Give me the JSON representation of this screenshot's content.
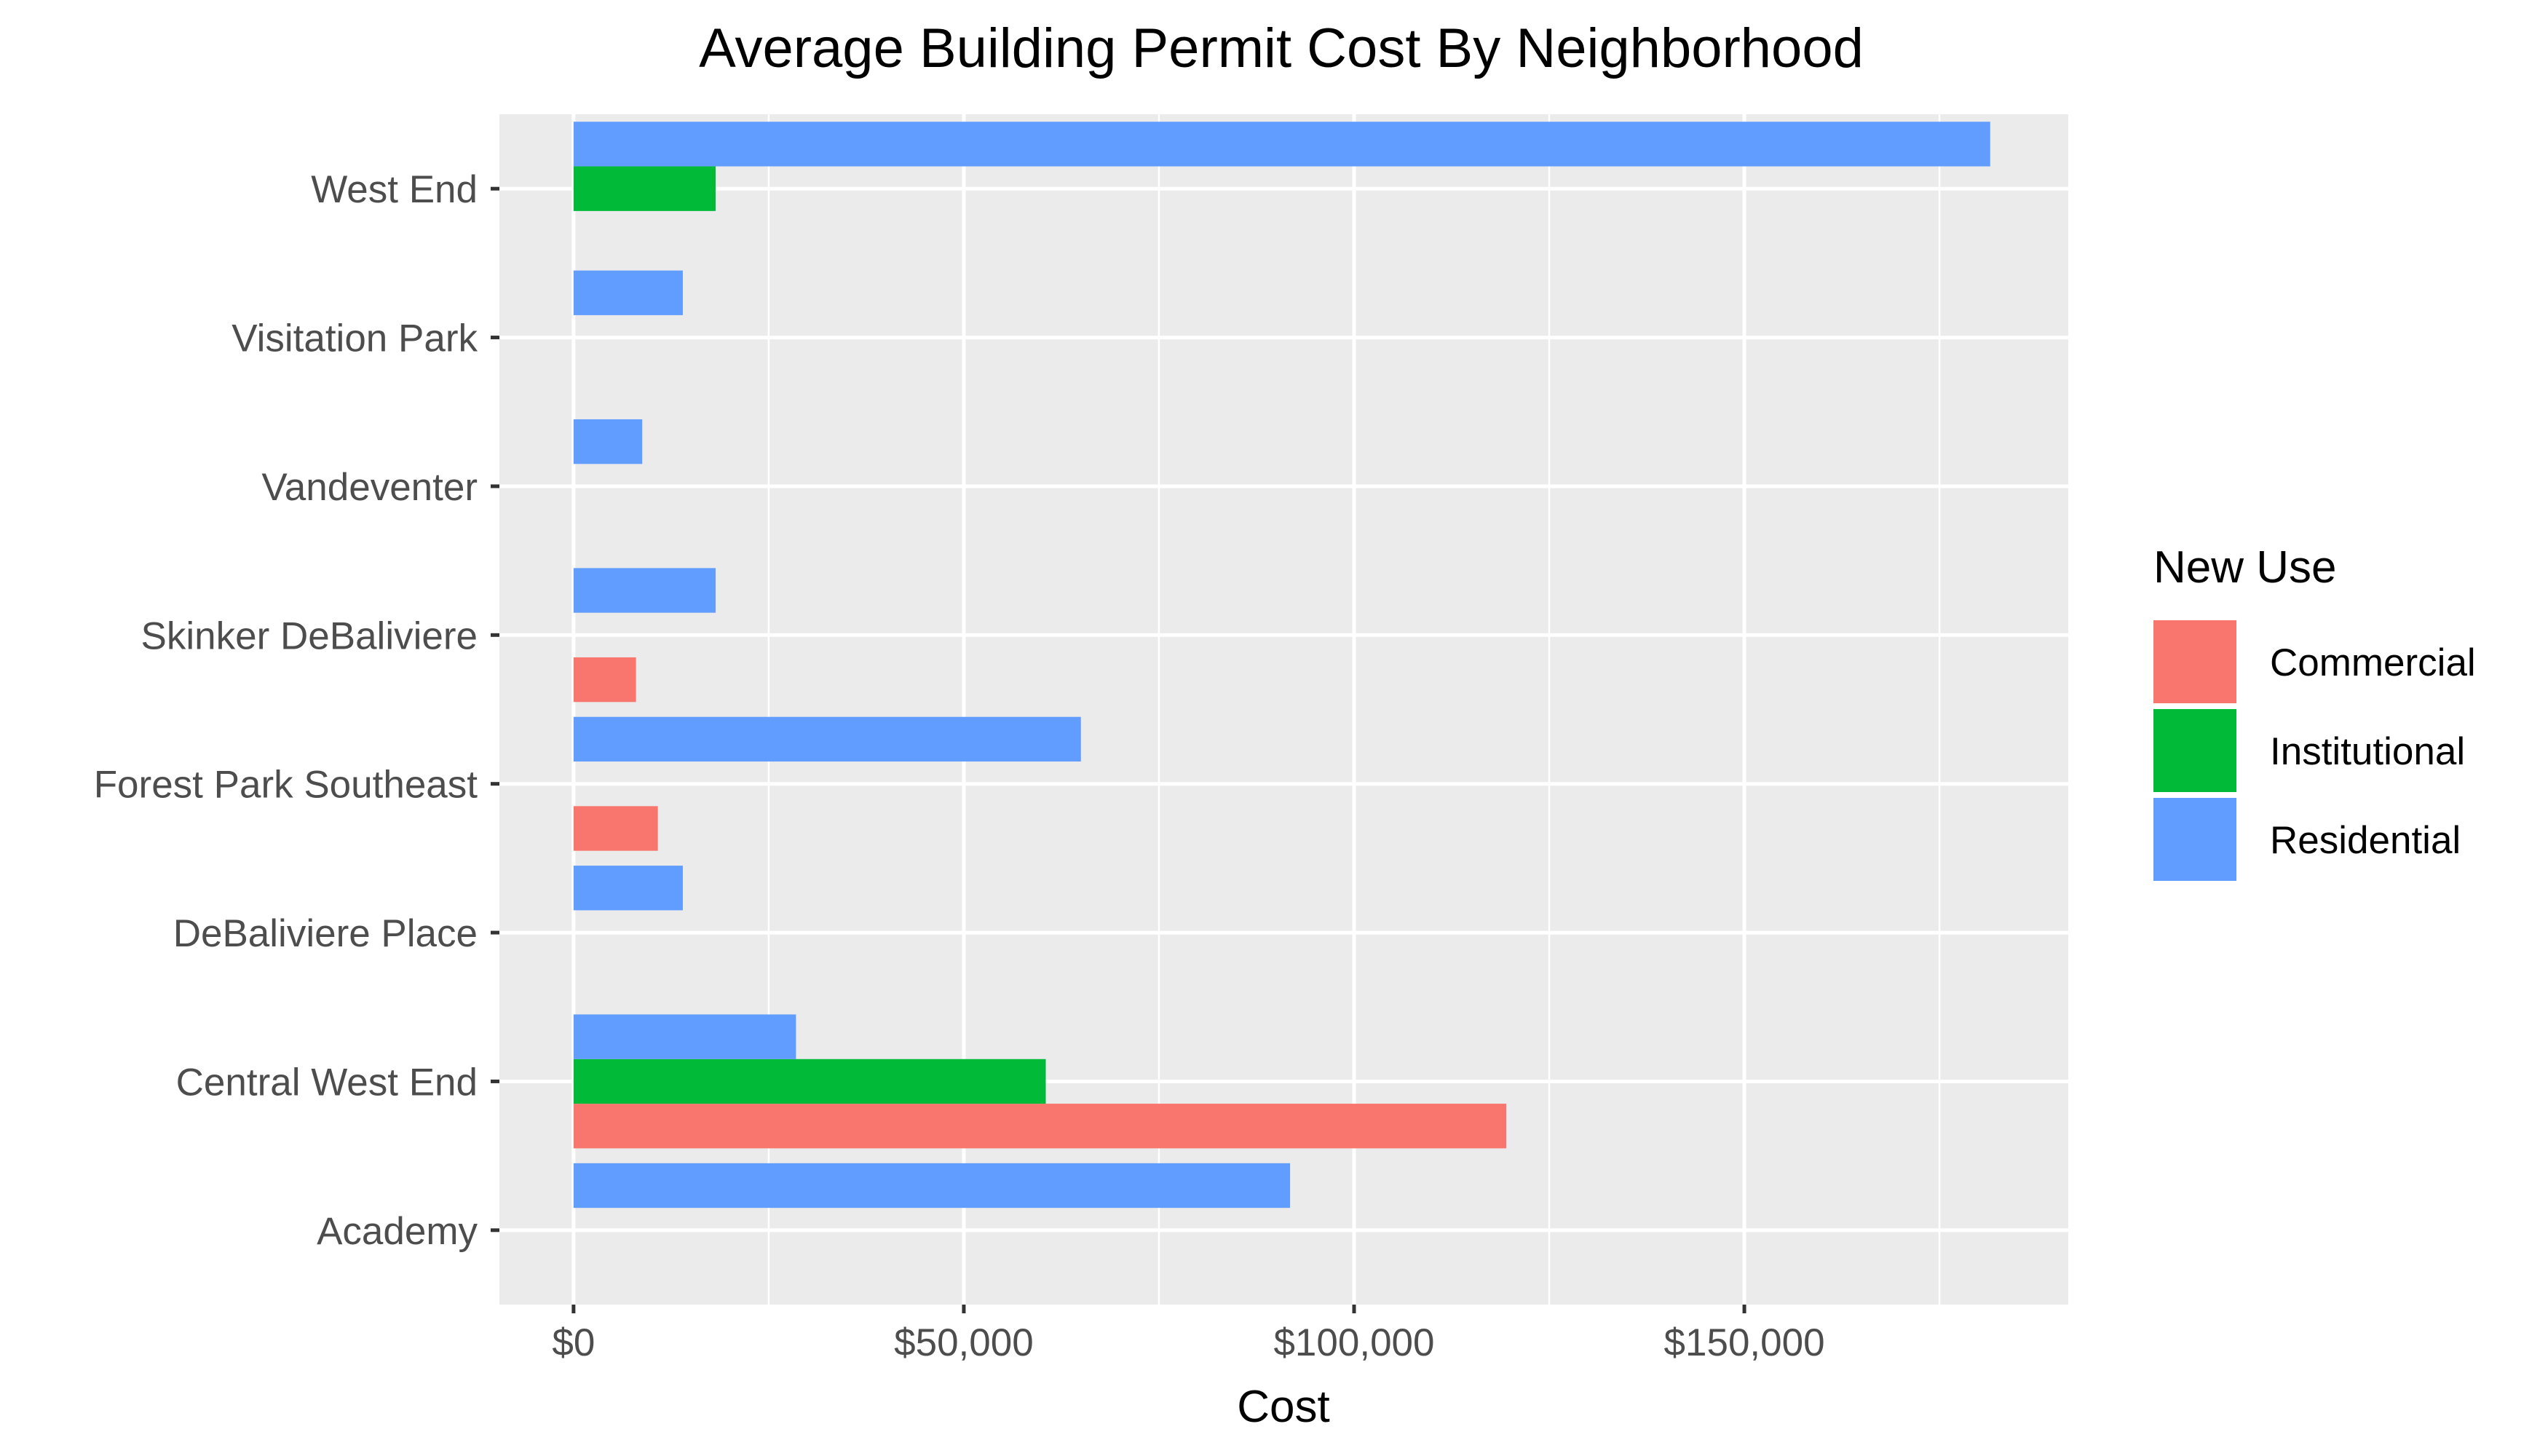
{
  "chart_data": {
    "type": "bar",
    "orientation": "horizontal",
    "title": "Average Building Permit Cost By Neighborhood",
    "xlabel": "Cost",
    "ylabel": "",
    "xlim": [
      -9500,
      191500
    ],
    "x_ticks": [
      {
        "value": 0,
        "label": "$0"
      },
      {
        "value": 50000,
        "label": "$50,000"
      },
      {
        "value": 100000,
        "label": "$100,000"
      },
      {
        "value": 150000,
        "label": "$150,000"
      }
    ],
    "x_minor_ticks": [
      25000,
      75000,
      125000,
      175000
    ],
    "categories": [
      "Academy",
      "Central West End",
      "DeBaliviere Place",
      "Forest Park Southeast",
      "Skinker DeBaliviere",
      "Vandeventer",
      "Visitation Park",
      "West End"
    ],
    "legend": {
      "title": "New Use",
      "position": "right",
      "entries": [
        {
          "name": "Commercial",
          "color": "#F8766D"
        },
        {
          "name": "Institutional",
          "color": "#00BA38"
        },
        {
          "name": "Residential",
          "color": "#619CFF"
        }
      ]
    },
    "series": [
      {
        "name": "Commercial",
        "color": "#F8766D",
        "values": [
          null,
          119500,
          null,
          10800,
          8000,
          null,
          null,
          null
        ]
      },
      {
        "name": "Institutional",
        "color": "#00BA38",
        "values": [
          null,
          60500,
          null,
          null,
          null,
          null,
          null,
          18200
        ]
      },
      {
        "name": "Residential",
        "color": "#619CFF",
        "values": [
          91800,
          28500,
          14000,
          65000,
          18200,
          8800,
          14000,
          181500
        ]
      }
    ],
    "grid": true,
    "panel_background": "#EBEBEB",
    "grid_color": "#FFFFFF"
  }
}
